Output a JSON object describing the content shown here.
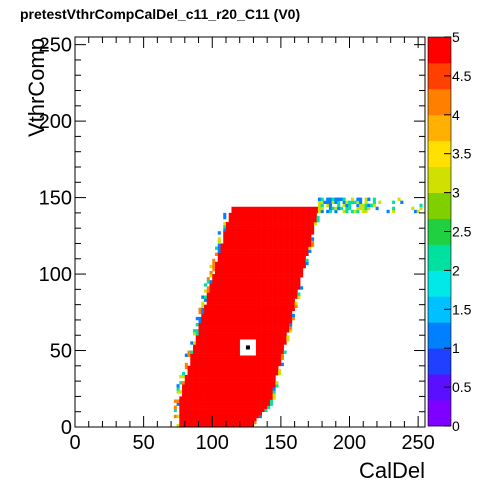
{
  "chart_data": {
    "type": "heatmap",
    "title": "pretestVthrCompCalDel_c11_r20_C11 (V0)",
    "xlabel": "CalDel",
    "ylabel": "VthrComp",
    "xlim": [
      0,
      255
    ],
    "ylim": [
      0,
      255
    ],
    "x_ticks": [
      "0",
      "50",
      "100",
      "150",
      "200",
      "250"
    ],
    "y_ticks": [
      "0",
      "50",
      "100",
      "150",
      "200",
      "250"
    ],
    "zlim": [
      0,
      5
    ],
    "z_ticks": [
      "0",
      "0.5",
      "1",
      "1.5",
      "2",
      "2.5",
      "3",
      "3.5",
      "4",
      "4.5",
      "5"
    ],
    "colorbar": true,
    "palette": "rainbow",
    "main_region": {
      "value": 5,
      "bottom_vthr": 0,
      "top_vthr": 143,
      "left_edge_caldel_at_bottom": 70,
      "left_edge_caldel_at_top": 113,
      "right_edge_caldel_at_bottom": 137,
      "right_edge_caldel_at_top": 177,
      "border_values": [
        1,
        2,
        3,
        4
      ]
    },
    "tail_region": {
      "vthr_min": 140,
      "vthr_max": 148,
      "caldel_from": 177,
      "caldel_to": 255,
      "values": [
        1,
        2,
        3
      ]
    },
    "marker": {
      "caldel": 126,
      "vthr": 52
    }
  }
}
